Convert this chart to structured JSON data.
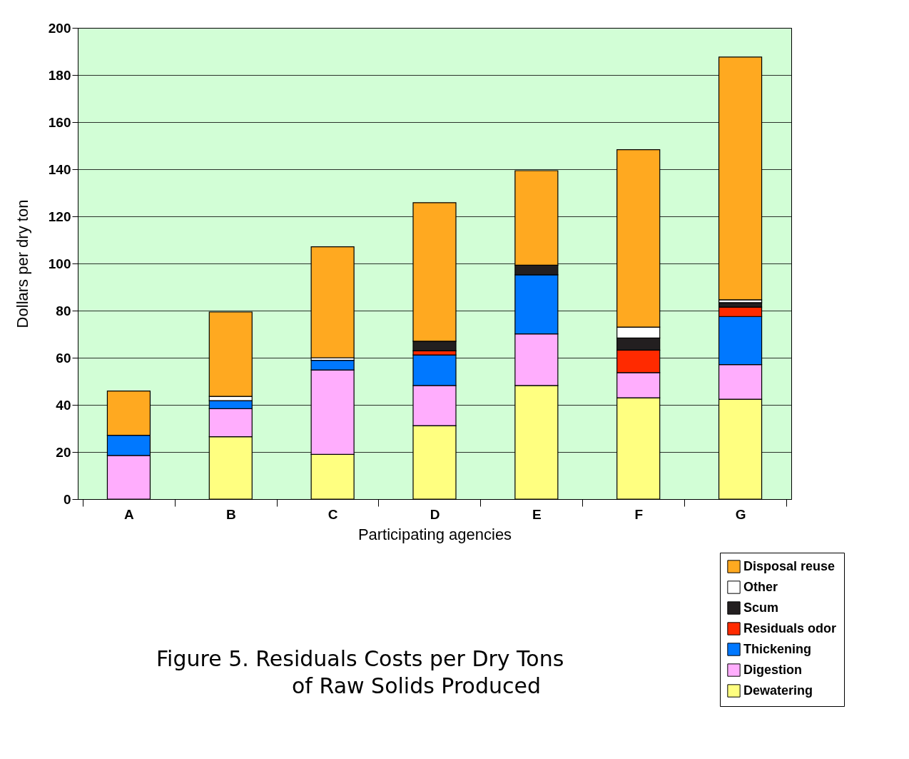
{
  "chart_data": {
    "type": "bar",
    "stacked": true,
    "title": "Figure 5.    Residuals Costs per Dry Tons\nof Raw Solids Produced",
    "xlabel": "Participating agencies",
    "ylabel": "Dollars per dry ton",
    "categories": [
      "A",
      "B",
      "C",
      "D",
      "E",
      "F",
      "G"
    ],
    "ylim": [
      0,
      200
    ],
    "yticks": [
      0,
      20,
      40,
      60,
      80,
      100,
      120,
      140,
      160,
      180,
      200
    ],
    "grid": "y",
    "legend": "bottom right",
    "series": [
      {
        "name": "Dewatering",
        "color": "#ffff80",
        "values": [
          null,
          26.5,
          19.0,
          31.2,
          48.2,
          43.0,
          42.4
        ]
      },
      {
        "name": "Digestion",
        "color": "#ffadfd",
        "values": [
          18.5,
          11.9,
          35.8,
          17.0,
          21.9,
          10.7,
          14.7
        ]
      },
      {
        "name": "Thickening",
        "color": "#0078ff",
        "values": [
          8.6,
          3.4,
          4.1,
          13.0,
          25.1,
          null,
          20.4
        ]
      },
      {
        "name": "Residuals odor",
        "color": "#ff2a00",
        "values": [
          null,
          null,
          null,
          1.7,
          null,
          9.5,
          4.0
        ]
      },
      {
        "name": "Scum",
        "color": "#231f20",
        "values": [
          null,
          null,
          null,
          4.1,
          4.1,
          5.2,
          1.9
        ]
      },
      {
        "name": "Other",
        "color": "#ffffff",
        "values": [
          null,
          1.8,
          1.1,
          null,
          null,
          4.6,
          1.2
        ]
      },
      {
        "name": "Disposal reuse",
        "color": "#ffa920",
        "values": [
          18.8,
          35.8,
          47.1,
          58.8,
          40.1,
          75.3,
          103.0
        ]
      }
    ]
  }
}
